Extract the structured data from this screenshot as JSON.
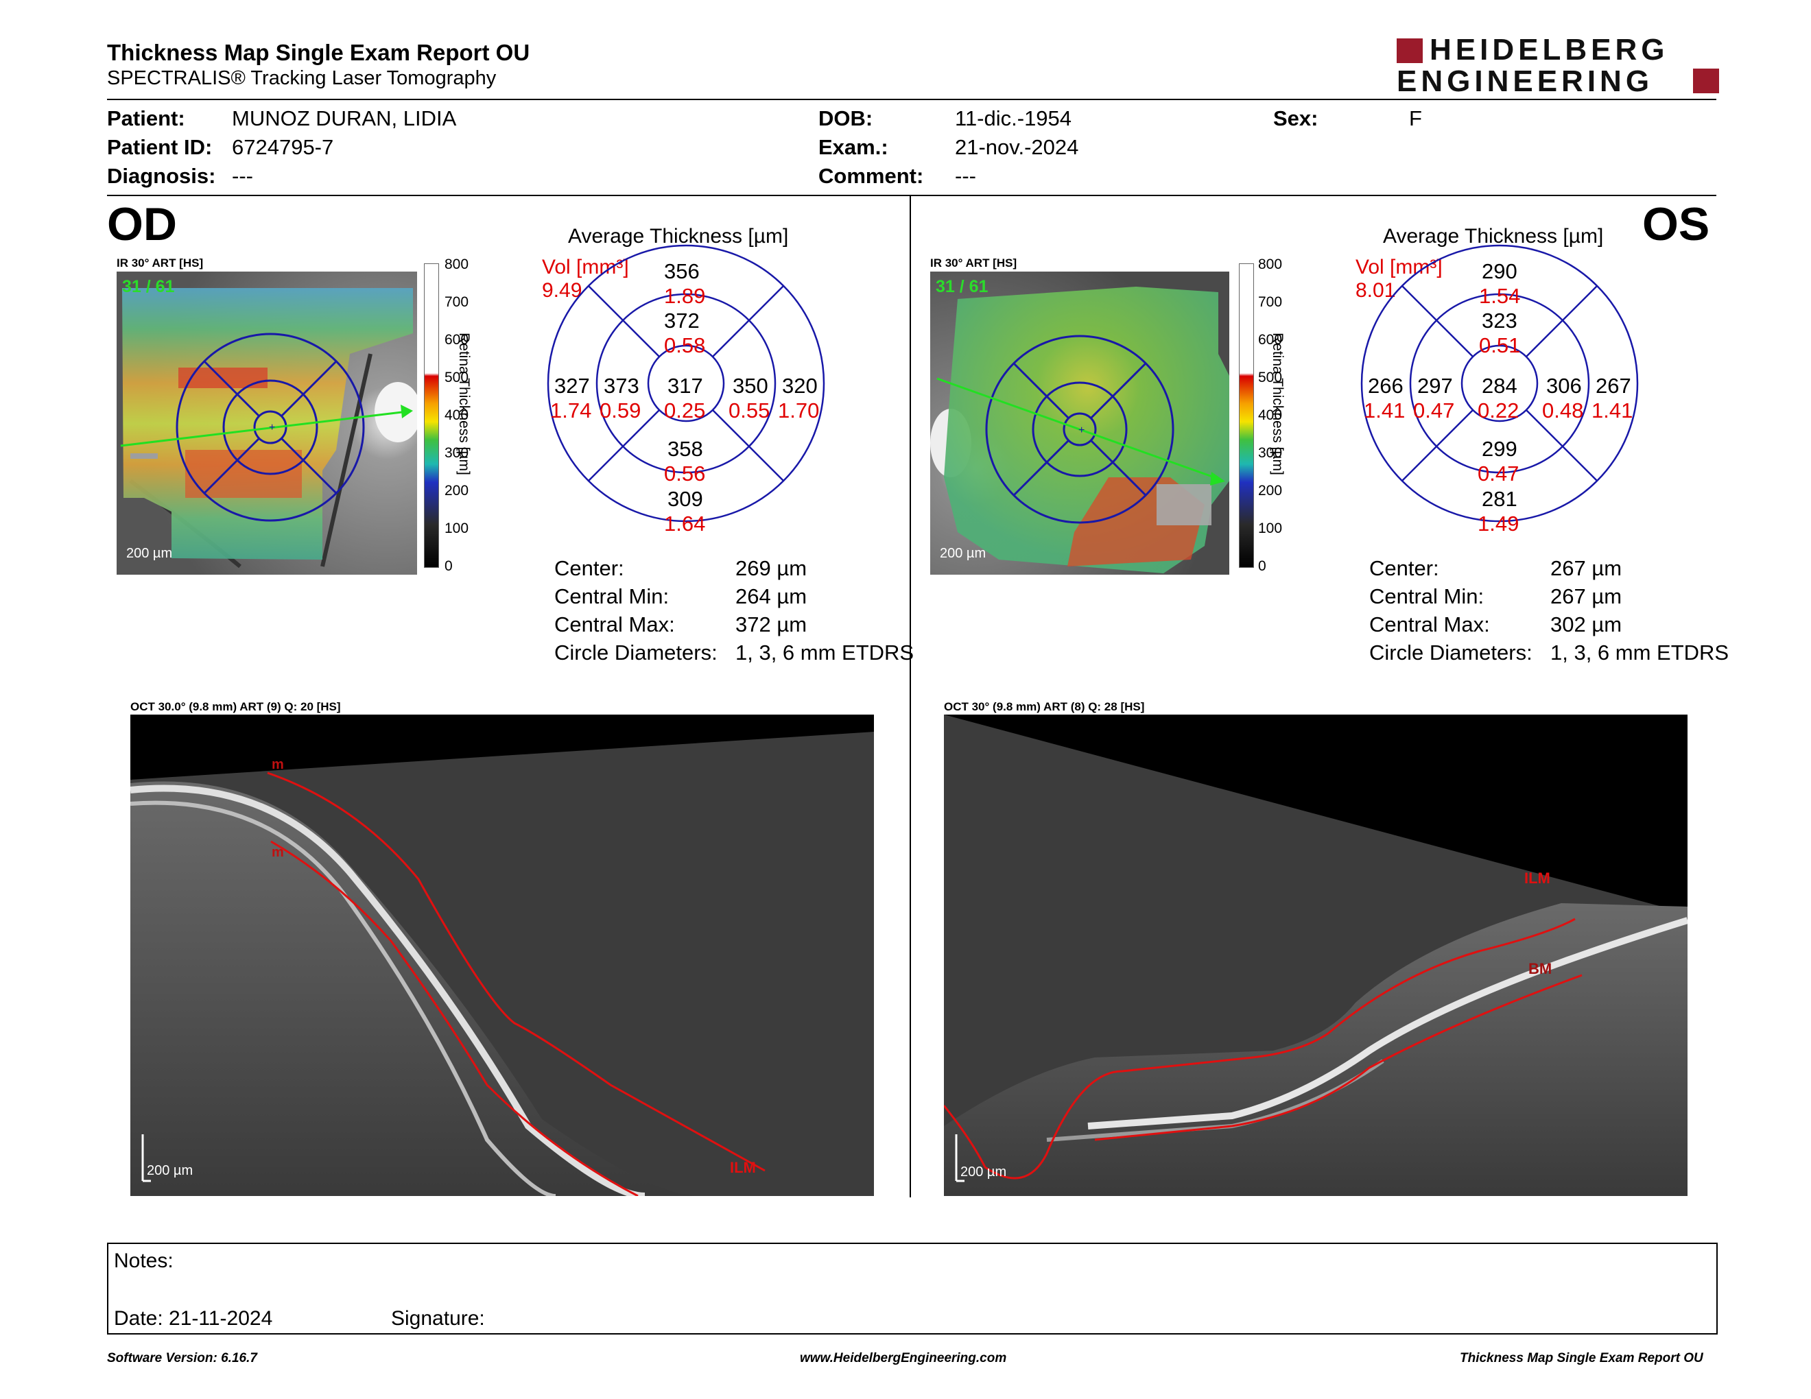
{
  "header": {
    "title": "Thickness Map Single Exam Report OU",
    "subtitle": "SPECTRALIS® Tracking Laser Tomography",
    "logo_line1": "HEIDELBERG",
    "logo_line2": "ENGINEERING",
    "brand_color": "#9b1b2b"
  },
  "patient": {
    "patient_label": "Patient:",
    "patient_value": "MUNOZ DURAN, LIDIA",
    "id_label": "Patient ID:",
    "id_value": "6724795-7",
    "diagnosis_label": "Diagnosis:",
    "diagnosis_value": "---",
    "dob_label": "DOB:",
    "dob_value": "11-dic.-1954",
    "exam_label": "Exam.:",
    "exam_value": "21-nov.-2024",
    "comment_label": "Comment:",
    "comment_value": "---",
    "sex_label": "Sex:",
    "sex_value": "F"
  },
  "od": {
    "eye": "OD",
    "ir_caption": "IR 30° ART [HS]",
    "frame": "31 / 61",
    "scale": "200 µm",
    "avg_title": "Average Thickness [µm]",
    "vol_label": "Vol [mm³]",
    "vol_value": "9.49",
    "etdrs": {
      "center": [
        "317",
        "0.25"
      ],
      "inner_superior": [
        "372",
        "0.58"
      ],
      "inner_inferior": [
        "358",
        "0.56"
      ],
      "inner_temporal": [
        "373",
        "0.59"
      ],
      "inner_nasal": [
        "350",
        "0.55"
      ],
      "outer_superior": [
        "356",
        "1.89"
      ],
      "outer_inferior": [
        "309",
        "1.64"
      ],
      "outer_temporal": [
        "327",
        "1.74"
      ],
      "outer_nasal": [
        "320",
        "1.70"
      ]
    },
    "stats": {
      "center_label": "Center:",
      "center_value": "269 µm",
      "min_label": "Central Min:",
      "min_value": "264 µm",
      "max_label": "Central Max:",
      "max_value": "372 µm",
      "diam_label": "Circle Diameters:",
      "diam_value": "1, 3, 6 mm ETDRS"
    },
    "oct_caption": "OCT 30.0° (9.8 mm) ART (9) Q: 20 [HS]",
    "oct_scale": "200 µm",
    "oct_labels": [
      "m",
      "m",
      "ILM"
    ]
  },
  "os": {
    "eye": "OS",
    "ir_caption": "IR 30° ART [HS]",
    "frame": "31 / 61",
    "scale": "200 µm",
    "avg_title": "Average Thickness [µm]",
    "vol_label": "Vol [mm³]",
    "vol_value": "8.01",
    "etdrs": {
      "center": [
        "284",
        "0.22"
      ],
      "inner_superior": [
        "323",
        "0.51"
      ],
      "inner_inferior": [
        "299",
        "0.47"
      ],
      "inner_temporal": [
        "297",
        "0.47"
      ],
      "inner_nasal": [
        "306",
        "0.48"
      ],
      "outer_superior": [
        "290",
        "1.54"
      ],
      "outer_inferior": [
        "281",
        "1.49"
      ],
      "outer_temporal": [
        "266",
        "1.41"
      ],
      "outer_nasal": [
        "267",
        "1.41"
      ]
    },
    "stats": {
      "center_label": "Center:",
      "center_value": "267 µm",
      "min_label": "Central Min:",
      "min_value": "267 µm",
      "max_label": "Central Max:",
      "max_value": "302 µm",
      "diam_label": "Circle Diameters:",
      "diam_value": "1, 3, 6 mm ETDRS"
    },
    "oct_caption": "OCT 30° (9.8 mm) ART (8) Q: 28 [HS]",
    "oct_scale": "200 µm",
    "oct_labels": [
      "ILM",
      "BM"
    ]
  },
  "colorbar": {
    "ticks": [
      "800",
      "700",
      "600",
      "500",
      "400",
      "300",
      "200",
      "100",
      "0"
    ],
    "title": "Retina Thickness [µm]"
  },
  "notes": {
    "notes_label": "Notes:",
    "date_label": "Date: 21-11-2024",
    "signature_label": "Signature:"
  },
  "footer": {
    "software": "Software Version: 6.16.7",
    "website": "www.HeidelbergEngineering.com",
    "report": "Thickness Map Single Exam Report OU"
  }
}
